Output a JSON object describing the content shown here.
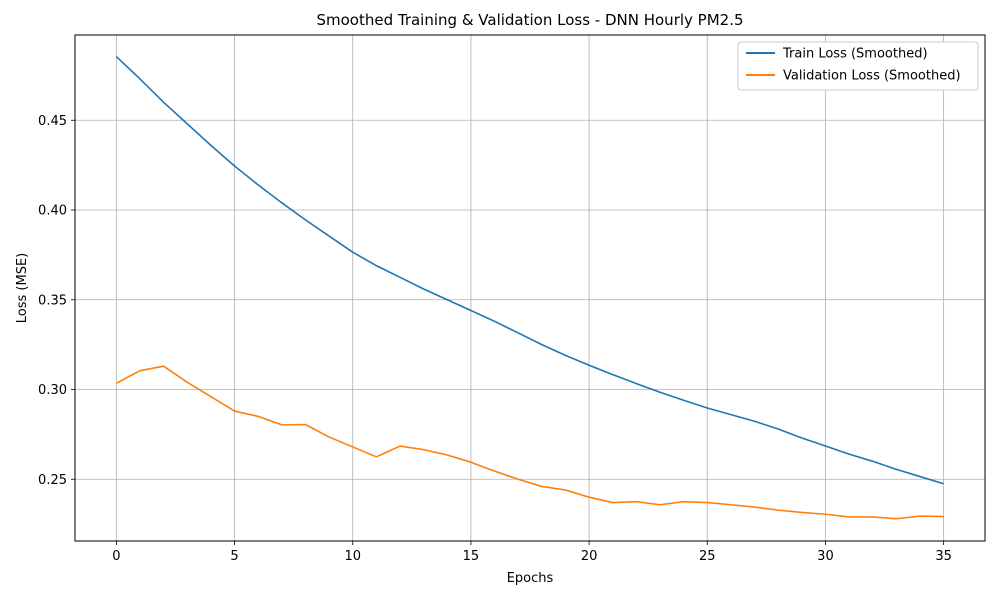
{
  "chart_data": {
    "type": "line",
    "title": "Smoothed Training & Validation Loss - DNN Hourly PM2.5",
    "xlabel": "Epochs",
    "ylabel": "Loss (MSE)",
    "xlim": [
      -1.75,
      36.75
    ],
    "ylim": [
      0.2156,
      0.4975
    ],
    "xticks": [
      0,
      5,
      10,
      15,
      20,
      25,
      30,
      35
    ],
    "yticks": [
      0.25,
      0.3,
      0.35,
      0.4,
      0.45
    ],
    "ytick_labels": [
      "0.25",
      "0.30",
      "0.35",
      "0.40",
      "0.45"
    ],
    "grid": true,
    "legend_position": "top-right",
    "x": [
      0,
      1,
      2,
      3,
      4,
      5,
      6,
      7,
      8,
      9,
      10,
      11,
      12,
      13,
      14,
      15,
      16,
      17,
      18,
      19,
      20,
      21,
      22,
      23,
      24,
      25,
      26,
      27,
      28,
      29,
      30,
      31,
      32,
      33,
      34,
      35
    ],
    "series": [
      {
        "name": "Train Loss (Smoothed)",
        "color": "#1f77b4",
        "values": [
          0.4855,
          0.473,
          0.46,
          0.448,
          0.436,
          0.4245,
          0.414,
          0.404,
          0.3945,
          0.3855,
          0.3765,
          0.369,
          0.3625,
          0.356,
          0.35,
          0.344,
          0.338,
          0.3315,
          0.325,
          0.319,
          0.3135,
          0.3083,
          0.3033,
          0.2985,
          0.294,
          0.2897,
          0.286,
          0.2823,
          0.278,
          0.273,
          0.2685,
          0.264,
          0.26,
          0.2555,
          0.2515,
          0.2475
        ]
      },
      {
        "name": "Validation Loss (Smoothed)",
        "color": "#ff7f0e",
        "values": [
          0.3035,
          0.3105,
          0.313,
          0.304,
          0.296,
          0.288,
          0.285,
          0.2803,
          0.2805,
          0.2735,
          0.268,
          0.2625,
          0.2685,
          0.2665,
          0.2635,
          0.2595,
          0.2545,
          0.25,
          0.246,
          0.244,
          0.24,
          0.237,
          0.2375,
          0.2358,
          0.2375,
          0.237,
          0.2358,
          0.2345,
          0.2328,
          0.2315,
          0.2305,
          0.229,
          0.229,
          0.228,
          0.2295,
          0.2292
        ]
      }
    ]
  }
}
